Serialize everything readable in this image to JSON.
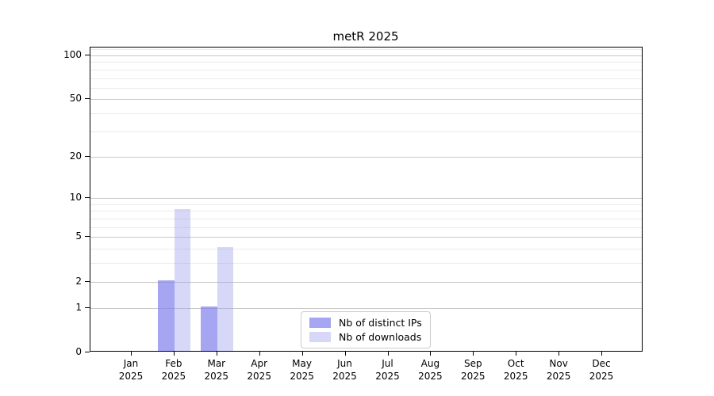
{
  "chart_data": {
    "type": "bar",
    "title": "metR 2025",
    "categories": [
      [
        "Jan",
        "2025"
      ],
      [
        "Feb",
        "2025"
      ],
      [
        "Mar",
        "2025"
      ],
      [
        "Apr",
        "2025"
      ],
      [
        "May",
        "2025"
      ],
      [
        "Jun",
        "2025"
      ],
      [
        "Jul",
        "2025"
      ],
      [
        "Aug",
        "2025"
      ],
      [
        "Sep",
        "2025"
      ],
      [
        "Oct",
        "2025"
      ],
      [
        "Nov",
        "2025"
      ],
      [
        "Dec",
        "2025"
      ]
    ],
    "series": [
      {
        "name": "Nb of distinct IPs",
        "color": "rgba(130,130,237,0.72)",
        "values": [
          0,
          2,
          1,
          0,
          0,
          0,
          0,
          0,
          0,
          0,
          0,
          0
        ]
      },
      {
        "name": "Nb of downloads",
        "color": "rgba(160,160,235,0.42)",
        "values": [
          0,
          8,
          4,
          0,
          0,
          0,
          0,
          0,
          0,
          0,
          0,
          0
        ]
      }
    ],
    "y_axis": {
      "scale": "log1p",
      "tick_labels": [
        "0",
        "1",
        "2",
        "5",
        "10",
        "20",
        "50",
        "100"
      ],
      "ticks": [
        0,
        1,
        2,
        5,
        10,
        20,
        50,
        100
      ],
      "minor_gridlines": [
        3,
        4,
        6,
        7,
        8,
        9,
        30,
        40,
        60,
        70,
        80,
        90,
        110
      ],
      "ylim": [
        0,
        113
      ]
    },
    "x_axis": {
      "ticks_per_month": true
    },
    "legend": {
      "position": "lower-center",
      "entries": [
        "Nb of distinct IPs",
        "Nb of downloads"
      ],
      "border_color": "#cccccc"
    },
    "grid": "on",
    "colors": {
      "major_gridline": "#c9c9c9",
      "minor_gridline": "#ebebeb",
      "axis": "#000000",
      "background": "#ffffff"
    }
  }
}
